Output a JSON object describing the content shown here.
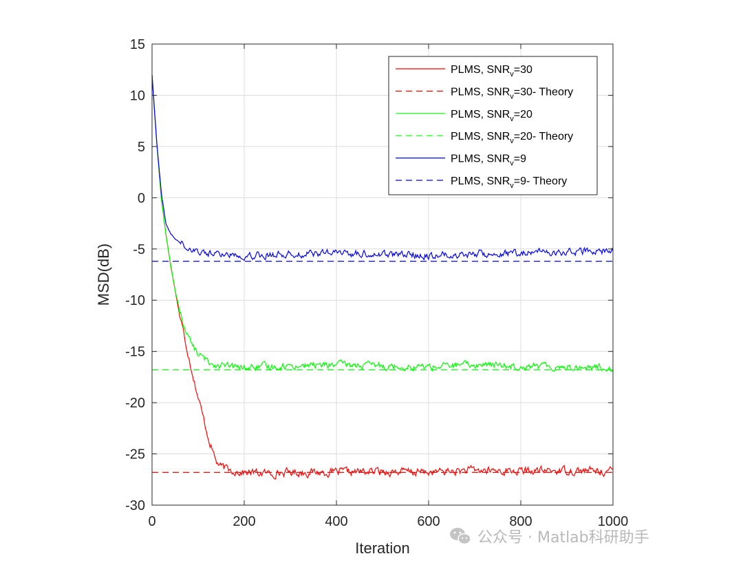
{
  "chart_data": {
    "type": "line",
    "title": "",
    "xlabel": "Iteration",
    "ylabel": "MSD(dB)",
    "xlim": [
      0,
      1000
    ],
    "ylim": [
      -30,
      15
    ],
    "x_ticks": [
      "0",
      "200",
      "400",
      "600",
      "800",
      "1000"
    ],
    "y_ticks": [
      "15",
      "10",
      "5",
      "0",
      "-5",
      "-10",
      "-15",
      "-20",
      "-25",
      "-30"
    ],
    "grid": true,
    "legend_position": "top-right",
    "series": [
      {
        "name": "PLMS, SNR_v=30",
        "legend_main": "PLMS, SNR",
        "legend_sub": "v",
        "legend_suffix": "=30",
        "color": "#ff0000",
        "style": "solid",
        "x": [
          0,
          10,
          20,
          30,
          40,
          50,
          60,
          70,
          80,
          90,
          100,
          110,
          120,
          130,
          140,
          150,
          170,
          200,
          250,
          300,
          400,
          500,
          600,
          700,
          800,
          900,
          1000
        ],
        "y": [
          12,
          5.5,
          0,
          -3.5,
          -6.5,
          -9.0,
          -11.5,
          -13.5,
          -15.5,
          -17.5,
          -19.5,
          -21.3,
          -23.0,
          -24.5,
          -25.8,
          -26.3,
          -26.6,
          -26.8,
          -26.9,
          -26.8,
          -26.8,
          -26.7,
          -26.8,
          -26.6,
          -26.7,
          -26.6,
          -26.7
        ],
        "noise_amplitude": 0.45
      },
      {
        "name": "PLMS, SNR_v=30- Theory",
        "legend_main": "PLMS, SNR",
        "legend_sub": "v",
        "legend_suffix": "=30- Theory",
        "color": "#ff0000",
        "style": "dashed",
        "x": [
          0,
          1000
        ],
        "y": [
          -26.8,
          -26.8
        ]
      },
      {
        "name": "PLMS, SNR_v=20",
        "legend_main": "PLMS, SNR",
        "legend_sub": "v",
        "legend_suffix": "=20",
        "color": "#00ff00",
        "style": "solid",
        "x": [
          0,
          10,
          20,
          30,
          40,
          50,
          60,
          70,
          80,
          90,
          100,
          110,
          120,
          140,
          170,
          200,
          300,
          400,
          500,
          600,
          700,
          800,
          900,
          1000
        ],
        "y": [
          12,
          5.5,
          0,
          -3.5,
          -6.5,
          -9.0,
          -11.0,
          -12.5,
          -13.7,
          -14.6,
          -15.2,
          -15.6,
          -16.0,
          -16.3,
          -16.5,
          -16.6,
          -16.4,
          -16.3,
          -16.4,
          -16.5,
          -16.3,
          -16.4,
          -16.5,
          -16.6
        ],
        "noise_amplitude": 0.4
      },
      {
        "name": "PLMS, SNR_v=20- Theory",
        "legend_main": "PLMS, SNR",
        "legend_sub": "v",
        "legend_suffix": "=20- Theory",
        "color": "#00ff00",
        "style": "dashed",
        "x": [
          0,
          1000
        ],
        "y": [
          -16.8,
          -16.8
        ]
      },
      {
        "name": "PLMS, SNR_v=9",
        "legend_main": "PLMS, SNR",
        "legend_sub": "v",
        "legend_suffix": "=9",
        "color": "#0000ff",
        "style": "solid",
        "x": [
          0,
          10,
          20,
          30,
          40,
          50,
          60,
          70,
          80,
          100,
          120,
          150,
          200,
          300,
          400,
          500,
          600,
          700,
          800,
          900,
          1000
        ],
        "y": [
          12,
          5.5,
          0.5,
          -2.5,
          -3.5,
          -4.0,
          -4.3,
          -4.6,
          -4.9,
          -5.2,
          -5.4,
          -5.5,
          -5.6,
          -5.5,
          -5.4,
          -5.5,
          -5.6,
          -5.5,
          -5.4,
          -5.3,
          -5.2
        ],
        "noise_amplitude": 0.4
      },
      {
        "name": "PLMS, SNR_v=9- Theory",
        "legend_main": "PLMS, SNR",
        "legend_sub": "v",
        "legend_suffix": "=9- Theory",
        "color": "#0000ff",
        "style": "dashed",
        "x": [
          0,
          1000
        ],
        "y": [
          -6.2,
          -6.2
        ]
      }
    ]
  },
  "watermark": {
    "text": "公众号 · Matlab科研助手",
    "icon": "wechat-icon"
  }
}
